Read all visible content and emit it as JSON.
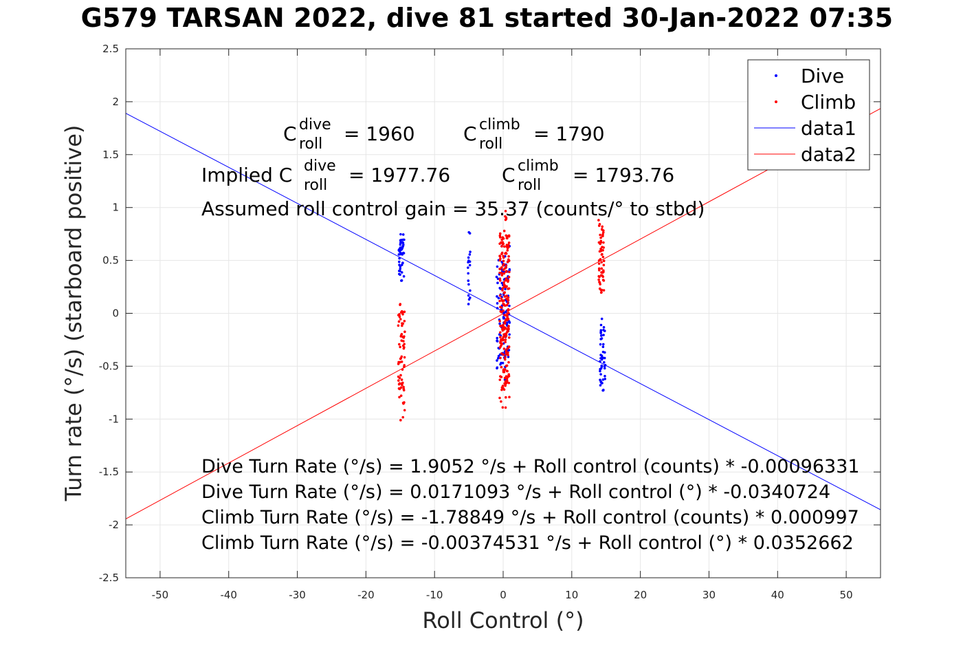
{
  "title": "G579 TARSAN 2022, dive 81 started 30-Jan-2022 07:35",
  "annotations": {
    "c_dive_label": "C",
    "c_dive_sup": "dive",
    "c_dive_sub": "roll",
    "c_dive_value": "= 1960",
    "c_climb_label": "C",
    "c_climb_sup": "climb",
    "c_climb_sub": "roll",
    "c_climb_value": "= 1790",
    "implied_prefix": "Implied C",
    "implied_dive_sup": "dive",
    "implied_dive_sub": "roll",
    "implied_dive_value": "= 1977.76",
    "implied_climb_label": "C",
    "implied_climb_sup": "climb",
    "implied_climb_sub": "roll",
    "implied_climb_value": "= 1793.76",
    "gain_text": "Assumed roll control gain = 35.37 (counts/° to stbd)",
    "equations": [
      "Dive Turn Rate (°/s) = 1.9052 °/s + Roll control (counts) * -0.00096331",
      "Dive Turn Rate (°/s) = 0.0171093 °/s + Roll control (°) * -0.0340724",
      "Climb Turn Rate (°/s) = -1.78849 °/s + Roll control (counts) * 0.000997",
      "Climb Turn Rate (°/s) = -0.00374531 °/s + Roll control (°) * 0.0352662"
    ]
  },
  "colors": {
    "dive": "#0000ff",
    "climb": "#ff0000",
    "grid": "#e6e6e6",
    "axis": "#262626"
  },
  "chart_data": {
    "type": "scatter",
    "title": "G579 TARSAN 2022, dive 81 started 30-Jan-2022 07:35",
    "xlabel": "Roll Control (°)",
    "ylabel": "Turn rate (°/s) (starboard positive)",
    "xlim": [
      -55,
      55
    ],
    "ylim": [
      -2.5,
      2.5
    ],
    "xticks": [
      -50,
      -40,
      -30,
      -20,
      -10,
      0,
      10,
      20,
      30,
      40,
      50
    ],
    "yticks": [
      -2.5,
      -2,
      -1.5,
      -1,
      -0.5,
      0,
      0.5,
      1,
      1.5,
      2,
      2.5
    ],
    "xtick_labels": [
      "-50",
      "-40",
      "-30",
      "-20",
      "-10",
      "0",
      "10",
      "20",
      "30",
      "40",
      "50"
    ],
    "ytick_labels": [
      "-2.5",
      "-2",
      "-1.5",
      "-1",
      "-0.5",
      "0",
      "0.5",
      "1",
      "1.5",
      "2",
      "2.5"
    ],
    "grid": true,
    "legend_position": "top-right",
    "legend": [
      "Dive",
      "Climb",
      "data1",
      "data2"
    ],
    "series": [
      {
        "name": "Dive",
        "kind": "points",
        "clusters": [
          {
            "x": -14.8,
            "spread": 0.4,
            "ymin": 0.3,
            "ymax": 0.75,
            "count": 45
          },
          {
            "x": -5.0,
            "spread": 0.2,
            "ymin": -0.08,
            "ymax": 0.95,
            "count": 18
          },
          {
            "x": 0.0,
            "spread": 1.0,
            "ymin": -0.65,
            "ymax": 0.65,
            "count": 110
          },
          {
            "x": 14.5,
            "spread": 0.4,
            "ymin": -0.77,
            "ymax": -0.05,
            "count": 50
          }
        ]
      },
      {
        "name": "Climb",
        "kind": "points",
        "clusters": [
          {
            "x": -14.8,
            "spread": 0.5,
            "ymin": -1.02,
            "ymax": 0.15,
            "count": 70
          },
          {
            "x": 0.2,
            "spread": 0.7,
            "ymin": -0.92,
            "ymax": 0.97,
            "count": 230
          },
          {
            "x": 14.3,
            "spread": 0.4,
            "ymin": 0.1,
            "ymax": 0.9,
            "count": 60
          }
        ]
      },
      {
        "name": "data1",
        "kind": "line",
        "intercept": 0.0171093,
        "slope": -0.0340724
      },
      {
        "name": "data2",
        "kind": "line",
        "intercept": -0.00374531,
        "slope": 0.0352662
      }
    ]
  }
}
